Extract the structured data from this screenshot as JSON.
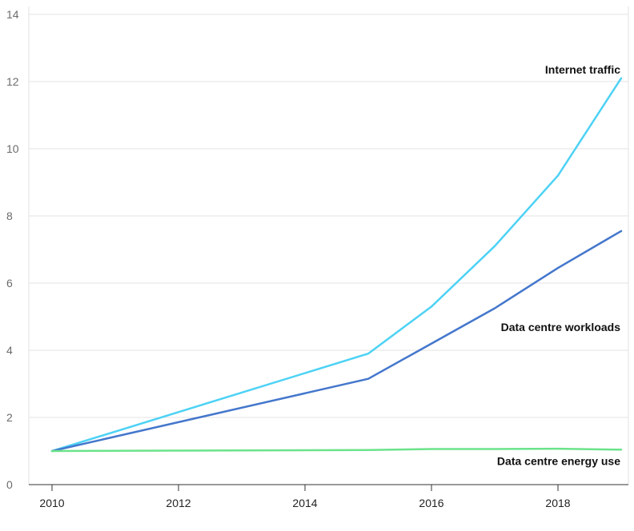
{
  "chart_data": {
    "type": "line",
    "title": "",
    "xlabel": "",
    "ylabel": "",
    "xlim": [
      2010,
      2019
    ],
    "ylim": [
      0,
      14
    ],
    "x_ticks": [
      "2010",
      "2012",
      "2014",
      "2016",
      "2018"
    ],
    "y_ticks": [
      "0",
      "2",
      "4",
      "6",
      "8",
      "10",
      "12",
      "14"
    ],
    "grid": true,
    "legend": "inline labels at line ends",
    "series": [
      {
        "name": "Internet traffic",
        "color": "#4dd2f5",
        "x": [
          2010,
          2015,
          2016,
          2017,
          2018,
          2019
        ],
        "values": [
          1.0,
          3.9,
          5.3,
          7.1,
          9.2,
          12.1
        ]
      },
      {
        "name": "Data centre workloads",
        "color": "#4477cc",
        "x": [
          2010,
          2015,
          2016,
          2017,
          2018,
          2019
        ],
        "values": [
          1.0,
          3.15,
          4.2,
          5.25,
          6.45,
          7.55
        ]
      },
      {
        "name": "Data centre energy use",
        "color": "#6be38a",
        "x": [
          2010,
          2015,
          2016,
          2017,
          2018,
          2019
        ],
        "values": [
          1.0,
          1.03,
          1.06,
          1.06,
          1.07,
          1.04
        ]
      }
    ]
  }
}
